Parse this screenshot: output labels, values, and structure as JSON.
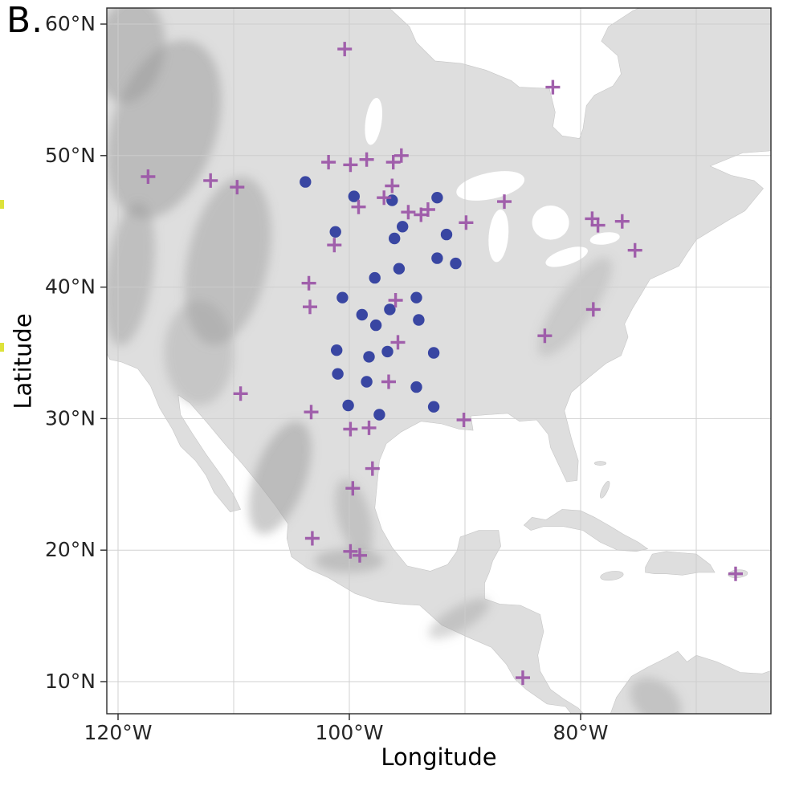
{
  "panel_label": "B.",
  "axes": {
    "x_title": "Longitude",
    "y_title": "Latitude",
    "x_ticks": [
      {
        "label": "120°W",
        "lon": -120
      },
      {
        "label": "100°W",
        "lon": -100
      },
      {
        "label": "80°W",
        "lon": -80
      }
    ],
    "y_ticks": [
      {
        "label": "60°N",
        "lat": 60
      },
      {
        "label": "50°N",
        "lat": 50
      },
      {
        "label": "40°N",
        "lat": 40
      },
      {
        "label": "30°N",
        "lat": 30
      },
      {
        "label": "20°N",
        "lat": 20
      },
      {
        "label": "10°N",
        "lat": 10
      }
    ]
  },
  "colors": {
    "cross": "#9c57a8",
    "circle": "#2f3d9e",
    "land": "#dedede",
    "relief": "#9a9a9a",
    "water": "#ffffff",
    "graticule": "#cccccc",
    "panel_border": "#2a2a2a",
    "tick_text": "#262626",
    "edge_mark": "#dde23a"
  },
  "chart_data": {
    "type": "scatter",
    "title": "",
    "xlabel": "Longitude",
    "ylabel": "Latitude",
    "x_range": [
      -121,
      -63.5
    ],
    "y_range": [
      7.5,
      61.2
    ],
    "grid": true,
    "legend": "none",
    "series": [
      {
        "name": "plus-markers",
        "marker": "plus",
        "color": "#9c57a8",
        "points": [
          [
            -100.4,
            58.1
          ],
          [
            -82.4,
            55.2
          ],
          [
            -117.4,
            48.4
          ],
          [
            -112.0,
            48.1
          ],
          [
            -109.7,
            47.6
          ],
          [
            -101.8,
            49.5
          ],
          [
            -99.9,
            49.3
          ],
          [
            -98.5,
            49.7
          ],
          [
            -96.2,
            49.5
          ],
          [
            -95.5,
            50.0
          ],
          [
            -96.3,
            47.7
          ],
          [
            -97.0,
            46.8
          ],
          [
            -99.2,
            46.1
          ],
          [
            -94.9,
            45.7
          ],
          [
            -93.8,
            45.5
          ],
          [
            -93.2,
            45.9
          ],
          [
            -89.9,
            44.9
          ],
          [
            -86.6,
            46.5
          ],
          [
            -79.0,
            45.2
          ],
          [
            -78.5,
            44.7
          ],
          [
            -76.4,
            45.0
          ],
          [
            -75.3,
            42.8
          ],
          [
            -101.3,
            43.2
          ],
          [
            -103.5,
            40.3
          ],
          [
            -103.4,
            38.5
          ],
          [
            -96.0,
            39.0
          ],
          [
            -95.8,
            35.8
          ],
          [
            -96.6,
            32.8
          ],
          [
            -78.9,
            38.3
          ],
          [
            -83.1,
            36.3
          ],
          [
            -109.4,
            31.9
          ],
          [
            -103.3,
            30.5
          ],
          [
            -99.9,
            29.2
          ],
          [
            -98.3,
            29.3
          ],
          [
            -90.1,
            29.9
          ],
          [
            -98.0,
            26.2
          ],
          [
            -99.7,
            24.7
          ],
          [
            -103.2,
            20.9
          ],
          [
            -99.9,
            19.9
          ],
          [
            -99.1,
            19.6
          ],
          [
            -85.0,
            10.3
          ],
          [
            -66.6,
            18.2
          ]
        ]
      },
      {
        "name": "circle-markers",
        "marker": "circle",
        "color": "#2f3d9e",
        "points": [
          [
            -103.8,
            48.0
          ],
          [
            -99.6,
            46.9
          ],
          [
            -96.3,
            46.6
          ],
          [
            -92.4,
            46.8
          ],
          [
            -101.2,
            44.2
          ],
          [
            -95.4,
            44.6
          ],
          [
            -96.1,
            43.7
          ],
          [
            -91.6,
            44.0
          ],
          [
            -92.4,
            42.2
          ],
          [
            -90.8,
            41.8
          ],
          [
            -95.7,
            41.4
          ],
          [
            -97.8,
            40.7
          ],
          [
            -100.6,
            39.2
          ],
          [
            -94.2,
            39.2
          ],
          [
            -96.5,
            38.3
          ],
          [
            -98.9,
            37.9
          ],
          [
            -97.7,
            37.1
          ],
          [
            -94.0,
            37.5
          ],
          [
            -101.1,
            35.2
          ],
          [
            -98.3,
            34.7
          ],
          [
            -96.7,
            35.1
          ],
          [
            -92.7,
            35.0
          ],
          [
            -101.0,
            33.4
          ],
          [
            -98.5,
            32.8
          ],
          [
            -94.2,
            32.4
          ],
          [
            -100.1,
            31.0
          ],
          [
            -97.4,
            30.3
          ],
          [
            -92.7,
            30.9
          ]
        ]
      }
    ]
  }
}
